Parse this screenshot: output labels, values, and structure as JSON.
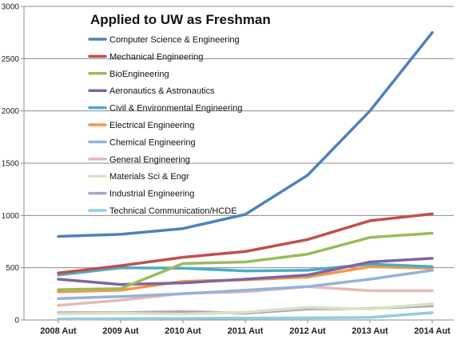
{
  "chart_data": {
    "type": "line",
    "title": "Applied to UW as Freshman",
    "xlabel": "",
    "ylabel": "",
    "ylim": [
      0,
      3000
    ],
    "yticks": [
      0,
      500,
      1000,
      1500,
      2000,
      2500,
      3000
    ],
    "grid": "horizontal",
    "legend_position": "top-left",
    "categories": [
      "2008 Aut",
      "2009 Aut",
      "2010 Aut",
      "2011 Aut",
      "2012 Aut",
      "2013 Aut",
      "2014 Aut"
    ],
    "series": [
      {
        "name": "Computer Science & Engineering",
        "color": "#4F81BD",
        "values": [
          800,
          820,
          875,
          1010,
          1385,
          2000,
          2750
        ]
      },
      {
        "name": "Mechanical Engineering",
        "color": "#C0504D",
        "values": [
          450,
          520,
          600,
          655,
          770,
          950,
          1015
        ]
      },
      {
        "name": "BioEngineering",
        "color": "#9BBB59",
        "values": [
          290,
          300,
          540,
          555,
          630,
          790,
          830
        ]
      },
      {
        "name": "Aeronautics & Astronautics",
        "color": "#8064A2",
        "values": [
          390,
          340,
          355,
          390,
          430,
          555,
          590
        ]
      },
      {
        "name": "Civil & Environmental Engineering",
        "color": "#4BACC6",
        "values": [
          430,
          500,
          495,
          470,
          475,
          535,
          510
        ]
      },
      {
        "name": "Electrical Engineering",
        "color": "#F79646",
        "values": [
          270,
          285,
          370,
          385,
          410,
          510,
          495
        ]
      },
      {
        "name": "Chemical Engineering",
        "color": "#95B3D7",
        "values": [
          205,
          225,
          250,
          285,
          320,
          390,
          475
        ]
      },
      {
        "name": "General Engineering",
        "color": "#E6B9B8",
        "values": [
          140,
          190,
          255,
          270,
          320,
          280,
          280
        ]
      },
      {
        "name": "Materials Sci & Engr",
        "color": "#D7E4BD",
        "values": [
          60,
          65,
          55,
          75,
          120,
          105,
          155
        ]
      },
      {
        "name": "Industrial Engineering",
        "color": "#B3A2C7",
        "values": [
          70,
          70,
          80,
          65,
          105,
          110,
          135
        ]
      },
      {
        "name": "Technical Communication/HCDE",
        "color": "#93CDDD",
        "values": [
          10,
          12,
          15,
          18,
          20,
          25,
          70
        ]
      }
    ]
  }
}
